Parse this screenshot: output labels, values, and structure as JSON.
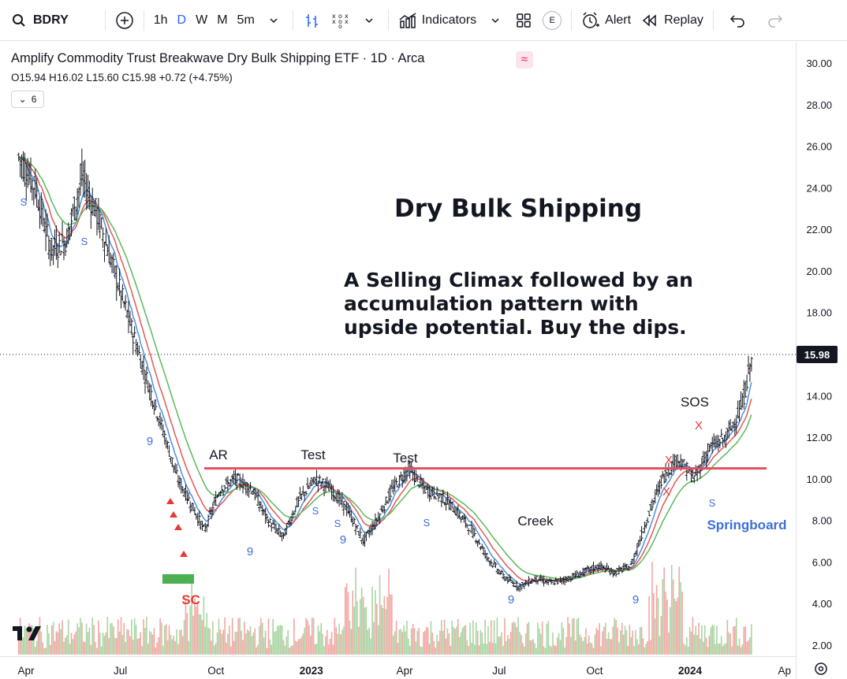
{
  "toolbar": {
    "symbol": "BDRY",
    "intervals": [
      "1h",
      "D",
      "W",
      "M",
      "5m"
    ],
    "active_interval": "D",
    "indicators_label": "Indicators",
    "alert_label": "Alert",
    "replay_label": "Replay",
    "earnings_label": "E"
  },
  "legend": {
    "title": "Amplify Commodity Trust Breakwave Dry Bulk Shipping ETF · 1D · Arca",
    "ohlc": "O15.94 H16.02 L15.60 C15.98 +0.72 (+4.75%)",
    "indicator_count": "6"
  },
  "annotations": {
    "heading": "Dry Bulk Shipping",
    "body_lines": [
      "A Selling Climax followed by an",
      "accumulation pattern with",
      "upside potential.  Buy the dips."
    ],
    "labels": {
      "ar": "AR",
      "test1": "Test",
      "test2": "Test",
      "creek": "Creek",
      "sos": "SOS",
      "sc": "SC",
      "springboard": "Springboard"
    }
  },
  "price_label": "15.98",
  "colors": {
    "ema_blue": "#4a90e2",
    "ema_red": "#e45756",
    "ema_green": "#5cb85c",
    "resistance": "#e05260",
    "springboard": "#3d6fd9",
    "sc": "#e53935",
    "vol_green": "#a8d5a2",
    "vol_red": "#f2a7a3"
  },
  "chart_data": {
    "type": "line",
    "title": "Amplify Commodity Trust Breakwave Dry Bulk Shipping ETF · 1D · Arca",
    "x_ticks": [
      "Apr",
      "Jul",
      "Oct",
      "2023",
      "Apr",
      "Jul",
      "Oct",
      "2024",
      "Ap"
    ],
    "y_ticks": [
      "30.00",
      "28.00",
      "26.00",
      "24.00",
      "22.00",
      "20.00",
      "18.00",
      "16.00",
      "14.00",
      "12.00",
      "10.00",
      "8.00",
      "6.00",
      "4.00",
      "2.00"
    ],
    "ylim": [
      1.5,
      30.5
    ],
    "last_close": 15.98,
    "resistance_level": 10.5,
    "x": [
      "2022-03-25",
      "2022-04-10",
      "2022-04-25",
      "2022-05-10",
      "2022-05-25",
      "2022-06-10",
      "2022-06-25",
      "2022-07-10",
      "2022-07-25",
      "2022-08-10",
      "2022-08-25",
      "2022-09-05",
      "2022-09-20",
      "2022-10-05",
      "2022-10-20",
      "2022-11-05",
      "2022-11-20",
      "2022-12-05",
      "2022-12-20",
      "2023-01-05",
      "2023-01-20",
      "2023-02-05",
      "2023-02-20",
      "2023-03-05",
      "2023-03-20",
      "2023-04-05",
      "2023-04-20",
      "2023-05-05",
      "2023-05-20",
      "2023-06-05",
      "2023-06-20",
      "2023-07-05",
      "2023-07-20",
      "2023-08-05",
      "2023-08-20",
      "2023-09-05",
      "2023-09-20",
      "2023-10-05",
      "2023-10-20",
      "2023-11-05",
      "2023-11-20",
      "2023-12-05",
      "2023-12-20",
      "2024-01-05",
      "2024-01-20",
      "2024-02-05",
      "2024-02-20",
      "2024-03-01"
    ],
    "series": [
      {
        "values": [
          25.5,
          24.0,
          21.0,
          21.5,
          24.5,
          22.5,
          20.0,
          17.5,
          15.0,
          12.5,
          10.0,
          9.0,
          7.5,
          9.5,
          10.0,
          9.5,
          8.0,
          7.2,
          9.0,
          10.0,
          9.5,
          8.5,
          7.0,
          8.0,
          9.5,
          10.5,
          9.5,
          9.2,
          8.5,
          7.5,
          6.2,
          5.3,
          4.8,
          5.2,
          5.0,
          5.2,
          5.5,
          5.8,
          5.5,
          5.8,
          8.0,
          10.0,
          11.0,
          10.0,
          11.5,
          12.0,
          13.5,
          16.0
        ]
      }
    ]
  }
}
